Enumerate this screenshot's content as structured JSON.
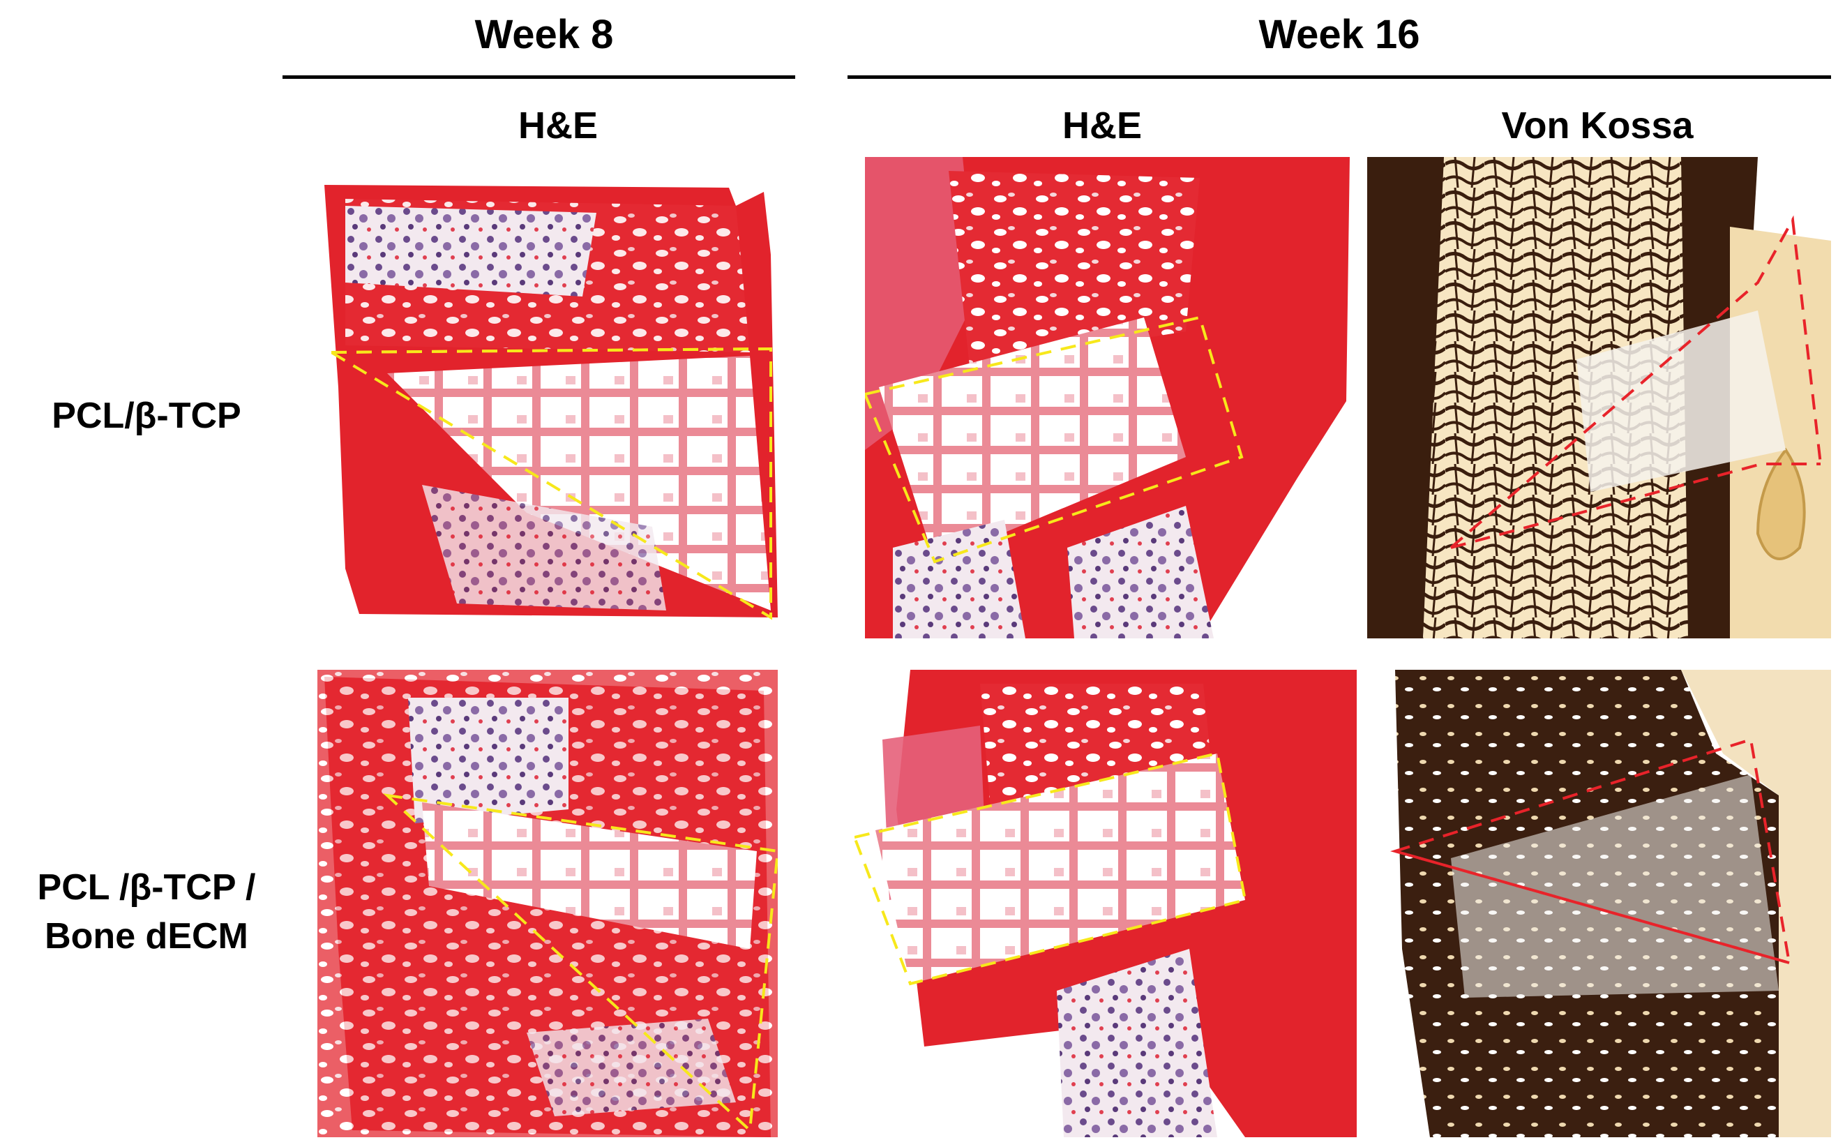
{
  "headers": {
    "week8": "Week 8",
    "week16": "Week 16"
  },
  "stains": {
    "he_week8": "H&E",
    "he_week16": "H&E",
    "vonkossa_week16": "Von Kossa"
  },
  "rows": {
    "row1_label": "PCL/β-TCP",
    "row2_label_line1": "PCL /β-TCP /",
    "row2_label_line2": "Bone dECM"
  },
  "colors": {
    "he_stain_red": "#e2232c",
    "he_stain_purple": "#6a4a8a",
    "vonkossa_dark": "#3a1e0e",
    "vonkossa_tan": "#e8c98a",
    "roi_yellow": "#f7e81b",
    "roi_red": "#e8232a"
  }
}
